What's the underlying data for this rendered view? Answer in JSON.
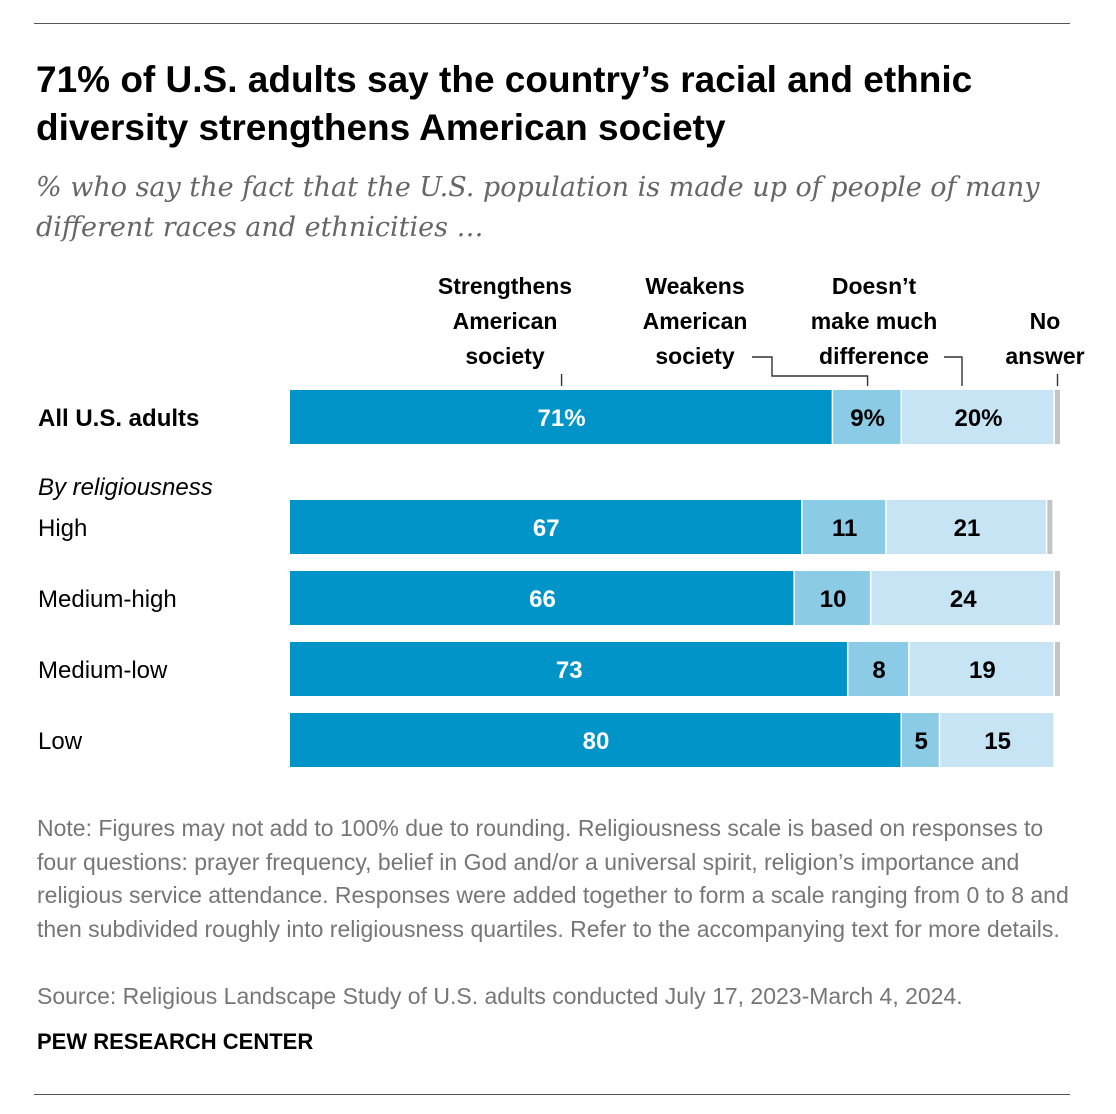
{
  "title": "71% of U.S. adults say the country’s racial and ethnic diversity strengthens American society",
  "subtitle": "% who say the fact that the U.S. population is made up of people of many different races and ethnicities …",
  "note": "Note: Figures may not add to 100% due to rounding. Religiousness scale is based on responses to four questions: prayer frequency, belief in God and/or a universal spirit, religion’s importance and religious service attendance. Responses were added together to form a scale ranging from 0 to 8 and then subdivided roughly into religiousness quartiles. Refer to the accompanying text for more details.",
  "source": "Source: Religious Landscape Study of U.S. adults conducted July 17, 2023-March 4, 2024.",
  "credit": "PEW RESEARCH CENTER",
  "chart_data": {
    "type": "bar",
    "orientation": "horizontal",
    "stacked": true,
    "group_label": "By religiousness",
    "series": [
      {
        "name": "Strengthens American society",
        "header_lines": [
          "Strengthens",
          "American",
          "society"
        ],
        "color": "#0194c8",
        "label_color": "#ffffff"
      },
      {
        "name": "Weakens American society",
        "header_lines": [
          "Weakens",
          "American",
          "society"
        ],
        "color": "#8ccbe6",
        "label_color": "#000000"
      },
      {
        "name": "Doesn’t make much difference",
        "header_lines": [
          "Doesn’t",
          "make much",
          "difference"
        ],
        "color": "#c6e4f4",
        "label_color": "#000000"
      },
      {
        "name": "No answer",
        "header_lines": [
          "No",
          "answer"
        ],
        "color": "#c4c4c4",
        "label_color": "#000000"
      }
    ],
    "rows": [
      {
        "category": "All U.S. adults",
        "bold": true,
        "values": [
          71,
          9,
          20,
          1
        ],
        "labels": [
          "71%",
          "9%",
          "20%",
          ""
        ]
      },
      {
        "category": "High",
        "bold": false,
        "values": [
          67,
          11,
          21,
          1
        ],
        "labels": [
          "67",
          "11",
          "21",
          ""
        ]
      },
      {
        "category": "Medium-high",
        "bold": false,
        "values": [
          66,
          10,
          24,
          1
        ],
        "labels": [
          "66",
          "10",
          "24",
          ""
        ]
      },
      {
        "category": "Medium-low",
        "bold": false,
        "values": [
          73,
          8,
          19,
          1
        ],
        "labels": [
          "73",
          "8",
          "19",
          ""
        ]
      },
      {
        "category": "Low",
        "bold": false,
        "values": [
          80,
          5,
          15,
          0
        ],
        "labels": [
          "80",
          "5",
          "15",
          ""
        ]
      }
    ],
    "xlim": [
      0,
      100
    ]
  }
}
